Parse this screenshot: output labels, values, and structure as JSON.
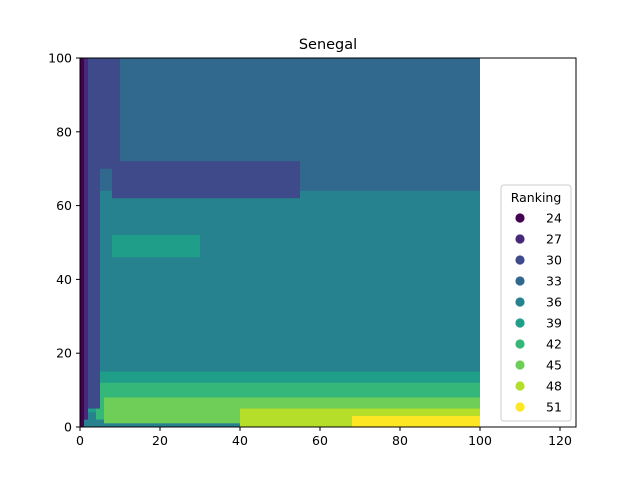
{
  "chart_data": {
    "type": "heatmap",
    "title": "Senegal",
    "xlabel": "",
    "ylabel": "",
    "xlim": [
      0,
      124
    ],
    "ylim": [
      0,
      100
    ],
    "data_extent": {
      "x": [
        0,
        100
      ],
      "y": [
        0,
        100
      ]
    },
    "x_ticks": [
      0,
      20,
      40,
      60,
      80,
      100,
      120
    ],
    "y_ticks": [
      0,
      20,
      40,
      60,
      80,
      100
    ],
    "grid": false,
    "colormap": "viridis",
    "legend": {
      "title": "Ranking",
      "placement": "right",
      "entries": [
        {
          "label": "24",
          "color": "#440154"
        },
        {
          "label": "27",
          "color": "#482878"
        },
        {
          "label": "30",
          "color": "#3e4a89"
        },
        {
          "label": "33",
          "color": "#31688e"
        },
        {
          "label": "36",
          "color": "#26828e"
        },
        {
          "label": "39",
          "color": "#1f9e89"
        },
        {
          "label": "42",
          "color": "#35b779"
        },
        {
          "label": "45",
          "color": "#6ece58"
        },
        {
          "label": "48",
          "color": "#b5de2b"
        },
        {
          "label": "51",
          "color": "#fde725"
        }
      ]
    },
    "regions": [
      {
        "ranking": 33,
        "x": [
          0,
          100
        ],
        "y": [
          0,
          100
        ]
      },
      {
        "ranking": 33,
        "x": [
          0,
          100
        ],
        "y": [
          66,
          100
        ]
      },
      {
        "ranking": 36,
        "x": [
          0,
          100
        ],
        "y": [
          14,
          64
        ]
      },
      {
        "ranking": 36,
        "x": [
          0,
          100
        ],
        "y": [
          0,
          14
        ]
      },
      {
        "ranking": 39,
        "x": [
          2,
          100
        ],
        "y": [
          4,
          15
        ]
      },
      {
        "ranking": 42,
        "x": [
          4,
          100
        ],
        "y": [
          2,
          12
        ]
      },
      {
        "ranking": 45,
        "x": [
          6,
          100
        ],
        "y": [
          1,
          8
        ]
      },
      {
        "ranking": 48,
        "x": [
          40,
          100
        ],
        "y": [
          0,
          5
        ]
      },
      {
        "ranking": 51,
        "x": [
          68,
          100
        ],
        "y": [
          0,
          3
        ]
      },
      {
        "ranking": 39,
        "x": [
          8,
          30
        ],
        "y": [
          46,
          52
        ]
      },
      {
        "ranking": 30,
        "x": [
          2,
          10
        ],
        "y": [
          70,
          100
        ]
      },
      {
        "ranking": 30,
        "x": [
          8,
          55
        ],
        "y": [
          62,
          72
        ]
      },
      {
        "ranking": 30,
        "x": [
          0,
          5
        ],
        "y": [
          5,
          100
        ]
      },
      {
        "ranking": 27,
        "x": [
          0,
          2
        ],
        "y": [
          2,
          100
        ]
      },
      {
        "ranking": 24,
        "x": [
          0,
          1
        ],
        "y": [
          0,
          100
        ]
      }
    ]
  }
}
